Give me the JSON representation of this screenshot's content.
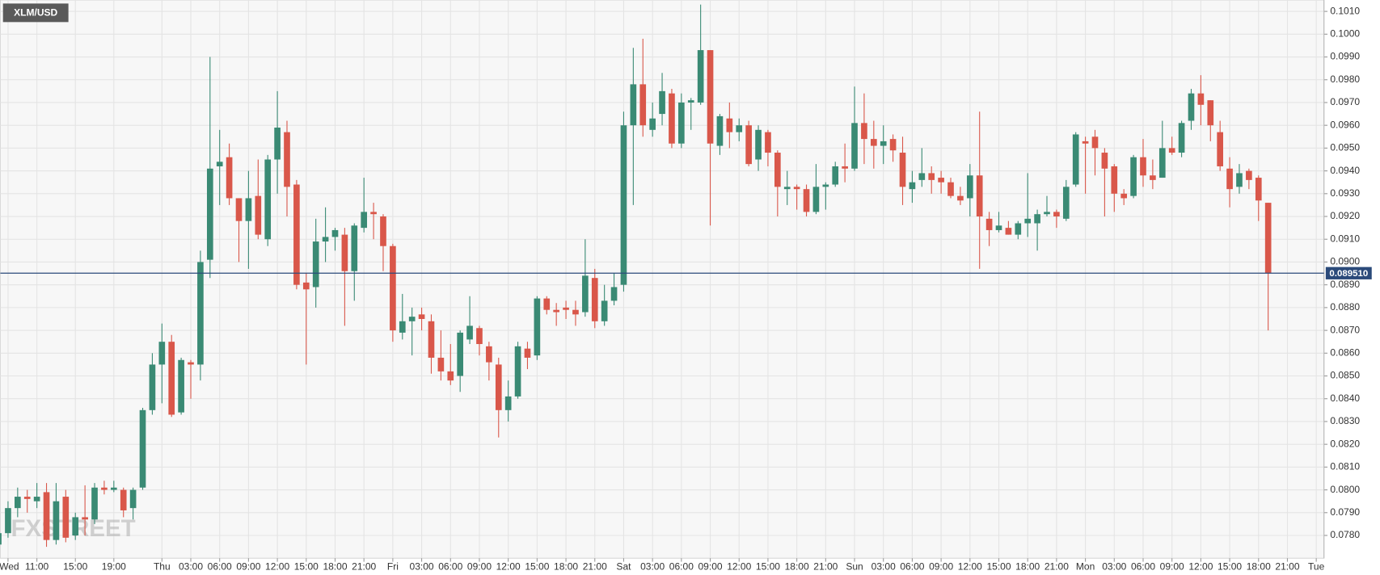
{
  "chart_data": {
    "type": "candlestick",
    "title": "XLM/USD",
    "watermark": "FXSTREET",
    "up_color": "#3a8a74",
    "down_color": "#d9574a",
    "grid": true,
    "xlim": [
      7.2,
      144.8
    ],
    "ylim": [
      0.077,
      0.1015
    ],
    "last_price": {
      "value": 0.08951,
      "label": "0.089510"
    },
    "x": [
      7,
      8,
      9,
      10,
      11,
      12,
      13,
      14,
      15,
      16,
      17,
      18,
      19,
      20,
      21,
      22,
      23,
      24,
      25,
      26,
      27,
      28,
      29,
      30,
      31,
      32,
      33,
      34,
      35,
      36,
      37,
      38,
      39,
      40,
      41,
      42,
      43,
      44,
      45,
      46,
      47,
      48,
      49,
      50,
      51,
      52,
      53,
      54,
      55,
      56,
      57,
      58,
      59,
      60,
      61,
      62,
      63,
      64,
      65,
      66,
      67,
      68,
      69,
      70,
      71,
      72,
      73,
      74,
      75,
      76,
      77,
      78,
      79,
      80,
      81,
      82,
      83,
      84,
      85,
      86,
      87,
      88,
      89,
      90,
      91,
      92,
      93,
      94,
      95,
      96,
      97,
      98,
      99,
      100,
      101,
      102,
      103,
      104,
      105,
      106,
      107,
      108,
      109,
      110,
      111,
      112,
      113,
      114,
      115,
      116,
      117,
      118,
      119,
      120,
      121,
      122,
      123,
      124,
      125,
      126,
      127,
      128,
      129,
      130,
      131,
      132,
      133,
      134,
      135,
      136,
      137,
      138,
      139
    ],
    "open": [
      0.0776,
      0.0781,
      0.0792,
      0.0797,
      0.0795,
      0.0799,
      0.0778,
      0.0797,
      0.078,
      0.0788,
      0.0787,
      0.0801,
      0.08,
      0.08,
      0.0792,
      0.0801,
      0.0835,
      0.0855,
      0.0865,
      0.0834,
      0.0856,
      0.0855,
      0.0901,
      0.0942,
      0.0946,
      0.0928,
      0.0918,
      0.0929,
      0.091,
      0.0945,
      0.0957,
      0.0934,
      0.0891,
      0.0889,
      0.0909,
      0.0911,
      0.0912,
      0.0896,
      0.0915,
      0.0922,
      0.092,
      0.0907,
      0.0869,
      0.0874,
      0.0877,
      0.0874,
      0.0858,
      0.0852,
      0.085,
      0.0866,
      0.0871,
      0.0863,
      0.0855,
      0.0835,
      0.0841,
      0.0862,
      0.0859,
      0.0884,
      0.0879,
      0.088,
      0.0879,
      0.0878,
      0.0893,
      0.0874,
      0.0883,
      0.089,
      0.096,
      0.0978,
      0.0958,
      0.0965,
      0.0974,
      0.0952,
      0.097,
      0.097,
      0.0993,
      0.0951,
      0.0963,
      0.0957,
      0.096,
      0.0945,
      0.0957,
      0.0948,
      0.0932,
      0.0933,
      0.0932,
      0.0922,
      0.0933,
      0.0934,
      0.0942,
      0.0941,
      0.0961,
      0.0954,
      0.0951,
      0.0954,
      0.0948,
      0.0932,
      0.0936,
      0.0939,
      0.0937,
      0.0935,
      0.0929,
      0.0928,
      0.0938,
      0.0919,
      0.0914,
      0.0915,
      0.0912,
      0.0917,
      0.0917,
      0.0921,
      0.0922,
      0.0919,
      0.0934,
      0.0953,
      0.0955,
      0.0948,
      0.0942,
      0.093,
      0.0929,
      0.0946,
      0.0938,
      0.0937,
      0.095,
      0.0948,
      0.0962,
      0.0974,
      0.0971,
      0.0957,
      0.0941,
      0.0933,
      0.094,
      0.0937,
      0.0926
    ],
    "high": [
      0.0783,
      0.0795,
      0.0801,
      0.08,
      0.0803,
      0.0803,
      0.0803,
      0.08,
      0.079,
      0.0802,
      0.0803,
      0.0804,
      0.0804,
      0.0801,
      0.0801,
      0.0836,
      0.086,
      0.0873,
      0.0868,
      0.0858,
      0.0857,
      0.0905,
      0.099,
      0.0958,
      0.0952,
      0.0928,
      0.094,
      0.0945,
      0.0947,
      0.0975,
      0.0962,
      0.0936,
      0.0895,
      0.0919,
      0.0924,
      0.0915,
      0.0915,
      0.0917,
      0.0937,
      0.0926,
      0.0921,
      0.0908,
      0.0886,
      0.088,
      0.088,
      0.0877,
      0.087,
      0.0864,
      0.087,
      0.0885,
      0.0872,
      0.0865,
      0.0858,
      0.0848,
      0.0865,
      0.0865,
      0.0885,
      0.0885,
      0.0882,
      0.0883,
      0.0883,
      0.091,
      0.0897,
      0.089,
      0.0895,
      0.0966,
      0.0994,
      0.0998,
      0.097,
      0.0983,
      0.0976,
      0.0974,
      0.0972,
      0.1013,
      0.0993,
      0.0965,
      0.097,
      0.0963,
      0.0962,
      0.096,
      0.0958,
      0.0949,
      0.094,
      0.0934,
      0.0934,
      0.0943,
      0.0935,
      0.0944,
      0.0952,
      0.0977,
      0.0974,
      0.0962,
      0.096,
      0.0956,
      0.0955,
      0.094,
      0.095,
      0.0942,
      0.094,
      0.0937,
      0.0933,
      0.0943,
      0.0966,
      0.0922,
      0.0922,
      0.0918,
      0.0918,
      0.0939,
      0.0923,
      0.0929,
      0.0923,
      0.0936,
      0.0957,
      0.0955,
      0.0958,
      0.095,
      0.0943,
      0.0932,
      0.0947,
      0.0954,
      0.0945,
      0.0962,
      0.0955,
      0.0962,
      0.0976,
      0.0982,
      0.0971,
      0.0962,
      0.0946,
      0.0943,
      0.0941,
      0.0938,
      0.0926
    ],
    "low": [
      0.0773,
      0.0779,
      0.0788,
      0.079,
      0.0792,
      0.0775,
      0.0776,
      0.0777,
      0.0778,
      0.078,
      0.0785,
      0.0798,
      0.0799,
      0.0788,
      0.0787,
      0.08,
      0.0833,
      0.0838,
      0.0832,
      0.0833,
      0.084,
      0.0848,
      0.0893,
      0.0925,
      0.0925,
      0.09,
      0.0897,
      0.091,
      0.0907,
      0.093,
      0.092,
      0.0888,
      0.0855,
      0.088,
      0.09,
      0.0905,
      0.0872,
      0.0883,
      0.0913,
      0.091,
      0.0896,
      0.0865,
      0.0866,
      0.0859,
      0.087,
      0.0851,
      0.0848,
      0.0846,
      0.0843,
      0.0864,
      0.0859,
      0.0848,
      0.0823,
      0.083,
      0.084,
      0.0853,
      0.0857,
      0.0877,
      0.0872,
      0.0875,
      0.0872,
      0.0876,
      0.0871,
      0.0872,
      0.0881,
      0.0887,
      0.0925,
      0.0955,
      0.0955,
      0.096,
      0.095,
      0.095,
      0.0958,
      0.0969,
      0.0916,
      0.0947,
      0.095,
      0.0953,
      0.0942,
      0.094,
      0.0942,
      0.092,
      0.0925,
      0.0923,
      0.092,
      0.0921,
      0.0923,
      0.0933,
      0.0935,
      0.094,
      0.0943,
      0.0941,
      0.0943,
      0.0944,
      0.0925,
      0.0926,
      0.0933,
      0.093,
      0.093,
      0.0928,
      0.0925,
      0.092,
      0.0897,
      0.0907,
      0.0913,
      0.0912,
      0.091,
      0.0911,
      0.0905,
      0.092,
      0.0915,
      0.0918,
      0.0933,
      0.093,
      0.0938,
      0.092,
      0.0922,
      0.0925,
      0.0928,
      0.0933,
      0.0932,
      0.0937,
      0.0947,
      0.0946,
      0.0958,
      0.096,
      0.0953,
      0.094,
      0.0924,
      0.093,
      0.0932,
      0.0918,
      0.087
    ],
    "close": [
      0.0781,
      0.0792,
      0.0797,
      0.0796,
      0.0797,
      0.0778,
      0.0795,
      0.0779,
      0.0788,
      0.0787,
      0.0801,
      0.08,
      0.0801,
      0.0791,
      0.08,
      0.0835,
      0.0855,
      0.0865,
      0.0833,
      0.0857,
      0.0855,
      0.09,
      0.0941,
      0.0944,
      0.0928,
      0.0918,
      0.0928,
      0.0912,
      0.0945,
      0.0959,
      0.0933,
      0.089,
      0.0888,
      0.0909,
      0.0911,
      0.0914,
      0.0896,
      0.0916,
      0.0922,
      0.0921,
      0.0907,
      0.087,
      0.0874,
      0.0876,
      0.0875,
      0.0858,
      0.0852,
      0.0848,
      0.0869,
      0.0872,
      0.0864,
      0.0856,
      0.0835,
      0.0841,
      0.0863,
      0.0858,
      0.0884,
      0.0879,
      0.0878,
      0.0879,
      0.0877,
      0.0894,
      0.0874,
      0.0883,
      0.0889,
      0.096,
      0.0978,
      0.096,
      0.0963,
      0.0975,
      0.0952,
      0.097,
      0.0971,
      0.0993,
      0.0952,
      0.0964,
      0.0957,
      0.096,
      0.0943,
      0.0958,
      0.0948,
      0.0933,
      0.0933,
      0.0932,
      0.0922,
      0.0933,
      0.0934,
      0.0942,
      0.0941,
      0.0961,
      0.0954,
      0.0951,
      0.0953,
      0.0949,
      0.0933,
      0.0935,
      0.0939,
      0.0936,
      0.0935,
      0.0929,
      0.0927,
      0.0938,
      0.092,
      0.0914,
      0.0916,
      0.0912,
      0.0917,
      0.0919,
      0.0921,
      0.0922,
      0.092,
      0.0933,
      0.0956,
      0.0952,
      0.095,
      0.0941,
      0.093,
      0.0928,
      0.0946,
      0.0938,
      0.0936,
      0.095,
      0.0948,
      0.0961,
      0.0974,
      0.0969,
      0.096,
      0.0942,
      0.0932,
      0.0939,
      0.0936,
      0.0927,
      0.08951
    ],
    "yticks": [
      {
        "value": 0.078,
        "label": "0.0780"
      },
      {
        "value": 0.079,
        "label": "0.0790"
      },
      {
        "value": 0.08,
        "label": "0.0800"
      },
      {
        "value": 0.081,
        "label": "0.0810"
      },
      {
        "value": 0.082,
        "label": "0.0820"
      },
      {
        "value": 0.083,
        "label": "0.0830"
      },
      {
        "value": 0.084,
        "label": "0.0840"
      },
      {
        "value": 0.085,
        "label": "0.0850"
      },
      {
        "value": 0.086,
        "label": "0.0860"
      },
      {
        "value": 0.087,
        "label": "0.0870"
      },
      {
        "value": 0.088,
        "label": "0.0880"
      },
      {
        "value": 0.089,
        "label": "0.0890"
      },
      {
        "value": 0.09,
        "label": "0.0900"
      },
      {
        "value": 0.091,
        "label": "0.0910"
      },
      {
        "value": 0.092,
        "label": "0.0920"
      },
      {
        "value": 0.093,
        "label": "0.0930"
      },
      {
        "value": 0.094,
        "label": "0.0940"
      },
      {
        "value": 0.095,
        "label": "0.0950"
      },
      {
        "value": 0.096,
        "label": "0.0960"
      },
      {
        "value": 0.097,
        "label": "0.0970"
      },
      {
        "value": 0.098,
        "label": "0.0980"
      },
      {
        "value": 0.099,
        "label": "0.0990"
      },
      {
        "value": 0.1,
        "label": "0.1000"
      },
      {
        "value": 0.101,
        "label": "0.1010"
      }
    ],
    "xticks": [
      {
        "value": 8,
        "label": "Wed"
      },
      {
        "value": 11,
        "label": "11:00"
      },
      {
        "value": 15,
        "label": "15:00"
      },
      {
        "value": 19,
        "label": "19:00"
      },
      {
        "value": 24,
        "label": "Thu"
      },
      {
        "value": 27,
        "label": "03:00"
      },
      {
        "value": 30,
        "label": "06:00"
      },
      {
        "value": 33,
        "label": "09:00"
      },
      {
        "value": 36,
        "label": "12:00"
      },
      {
        "value": 39,
        "label": "15:00"
      },
      {
        "value": 42,
        "label": "18:00"
      },
      {
        "value": 45,
        "label": "21:00"
      },
      {
        "value": 48,
        "label": "Fri"
      },
      {
        "value": 51,
        "label": "03:00"
      },
      {
        "value": 54,
        "label": "06:00"
      },
      {
        "value": 57,
        "label": "09:00"
      },
      {
        "value": 60,
        "label": "12:00"
      },
      {
        "value": 63,
        "label": "15:00"
      },
      {
        "value": 66,
        "label": "18:00"
      },
      {
        "value": 69,
        "label": "21:00"
      },
      {
        "value": 72,
        "label": "Sat"
      },
      {
        "value": 75,
        "label": "03:00"
      },
      {
        "value": 78,
        "label": "06:00"
      },
      {
        "value": 81,
        "label": "09:00"
      },
      {
        "value": 84,
        "label": "12:00"
      },
      {
        "value": 87,
        "label": "15:00"
      },
      {
        "value": 90,
        "label": "18:00"
      },
      {
        "value": 93,
        "label": "21:00"
      },
      {
        "value": 96,
        "label": "Sun"
      },
      {
        "value": 99,
        "label": "03:00"
      },
      {
        "value": 102,
        "label": "06:00"
      },
      {
        "value": 105,
        "label": "09:00"
      },
      {
        "value": 108,
        "label": "12:00"
      },
      {
        "value": 111,
        "label": "15:00"
      },
      {
        "value": 114,
        "label": "18:00"
      },
      {
        "value": 117,
        "label": "21:00"
      },
      {
        "value": 120,
        "label": "Mon"
      },
      {
        "value": 123,
        "label": "03:00"
      },
      {
        "value": 126,
        "label": "06:00"
      },
      {
        "value": 129,
        "label": "09:00"
      },
      {
        "value": 132,
        "label": "12:00"
      },
      {
        "value": 135,
        "label": "15:00"
      },
      {
        "value": 138,
        "label": "18:00"
      },
      {
        "value": 141,
        "label": "21:00"
      },
      {
        "value": 144,
        "label": "Tue"
      }
    ]
  }
}
